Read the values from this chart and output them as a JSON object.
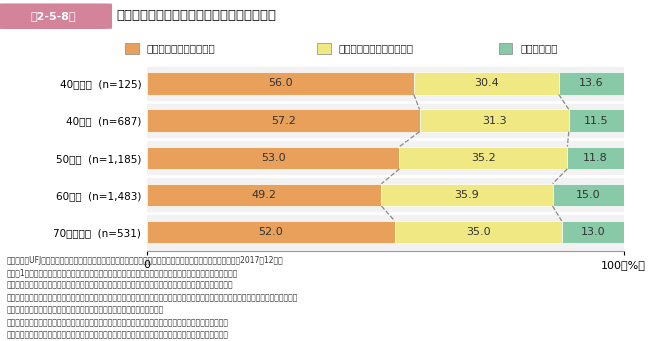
{
  "title_badge": "第2-5-8図",
  "title_text": "直近３年間の設備投資実績（経営者年代別）",
  "cat_labels": [
    "40歳未満  (n=125)",
    "40歳代  (n=687)",
    "50歳代  (n=1,185)",
    "60歳代  (n=1,483)",
    "70歳代以上  (n=531)"
  ],
  "series": [
    {
      "label": "積極的投資を行っている",
      "values": [
        56.0,
        57.2,
        53.0,
        49.2,
        52.0
      ],
      "color": "#E8A05A"
    },
    {
      "label": "消極的投資のみ行っている",
      "values": [
        30.4,
        31.3,
        35.2,
        35.9,
        35.0
      ],
      "color": "#F0E882"
    },
    {
      "label": "投資は未実施",
      "values": [
        13.6,
        11.5,
        11.8,
        15.0,
        13.0
      ],
      "color": "#88C9A8"
    }
  ],
  "xlim": [
    0,
    100
  ],
  "background": "#FFFFFF",
  "chart_bg": "#F2F2F2",
  "note_lines": [
    "資料：三菱UFJリサーチ＆コンサルティング（株）「人手不足対応に向けた生産性向上の取組に関する調査」（2017年12月）",
    "（注）1．新規投資・増産投資、省力化投資、更新投資（維持・補修等）の３種類の設備投資の実績に対して、",
    "　　　３種類の投資の少なくとも１つ以上で「積極的実施」をしている場合を「積極的投資を行っている」、",
    "　　　３種類の投資に「積極的実施」が含まれずに少なくとも１つ以上で「消極的実施」をしている場合を「消極的投資のみ行っている」、",
    "　　　３種類の投資の全てが未実施である場合を「投資は未実施」とした。",
    "　２．ここでいう投資の積極的実施とは、減価償却費や過去の実績と比較して、比較的高額の投資をいう。",
    "　３．ここでいう投資の消極的実施とは、減価償却費や過去の実績と比較して、比較的低額の投資をいう。"
  ],
  "badge_bg": "#D4849A",
  "badge_text_color": "#FFFFFF",
  "dashed_line_x": [
    56.0,
    86.4
  ]
}
